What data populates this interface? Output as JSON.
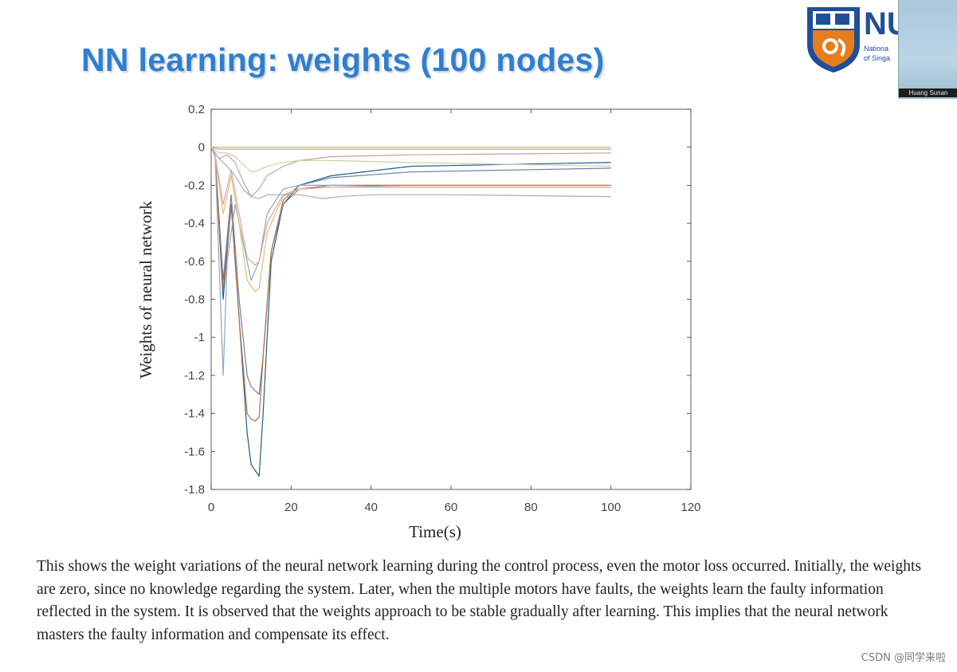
{
  "slide": {
    "title": "NN learning: weights (100 nodes)",
    "caption": "This shows the weight variations of the neural network learning during the control process, even the motor loss occurred. Initially, the weights are zero, since no knowledge regarding the system. Later, when the multiple motors have faults, the weights learn the  faulty information reflected in the system. It  is observed that the weights approach to be stable gradually after  learning. This implies that the neural network masters the faulty information and compensate its effect."
  },
  "logo": {
    "text": "NU",
    "line1": "Nationa",
    "line2": "of Singa",
    "colors": {
      "navy": "#1f4f99",
      "orange": "#e87d1e"
    }
  },
  "webcam": {
    "label": "Huang Sunan"
  },
  "watermark": {
    "text": "CSDN @同学来啦"
  },
  "chart_data": {
    "type": "line",
    "title": "",
    "xlabel": "Time(s)",
    "ylabel": "Weights of neural network",
    "xlim": [
      0,
      120
    ],
    "ylim": [
      -1.8,
      0.2
    ],
    "xticks": [
      "0",
      "20",
      "40",
      "60",
      "80",
      "100",
      "120"
    ],
    "yticks": [
      "0.2",
      "0",
      "-0.2",
      "-0.4",
      "-0.6",
      "-0.8",
      "-1",
      "-1.2",
      "-1.4",
      "-1.6",
      "-1.8"
    ],
    "grid": false,
    "series": [
      {
        "color": "#1f5f8b",
        "x": [
          0,
          1,
          3,
          5,
          7,
          9,
          10,
          11,
          12,
          13,
          15,
          18,
          22,
          30,
          50,
          100
        ],
        "y": [
          0,
          -0.05,
          -0.8,
          -0.3,
          -0.9,
          -1.5,
          -1.67,
          -1.7,
          -1.73,
          -1.4,
          -0.6,
          -0.3,
          -0.2,
          -0.15,
          -0.1,
          -0.08
        ]
      },
      {
        "color": "#6b7fa8",
        "x": [
          0,
          1,
          3,
          5,
          7,
          9,
          10,
          11,
          12,
          13,
          15,
          18,
          22,
          30,
          50,
          100
        ],
        "y": [
          0,
          -0.05,
          -0.7,
          -0.25,
          -0.8,
          -1.2,
          -1.26,
          -1.28,
          -1.3,
          -1.1,
          -0.55,
          -0.28,
          -0.2,
          -0.16,
          -0.13,
          -0.11
        ]
      },
      {
        "color": "#b86f3d",
        "x": [
          0,
          1,
          3,
          5,
          7,
          9,
          10,
          11,
          12,
          13,
          15,
          18,
          22,
          30,
          50,
          100
        ],
        "y": [
          0,
          -0.05,
          -0.75,
          -0.3,
          -0.9,
          -1.4,
          -1.43,
          -1.44,
          -1.42,
          -1.1,
          -0.55,
          -0.3,
          -0.22,
          -0.2,
          -0.2,
          -0.2
        ]
      },
      {
        "color": "#8aa8c8",
        "x": [
          0,
          1,
          3,
          4,
          6,
          8,
          10,
          12,
          14,
          18,
          22,
          30,
          50,
          100
        ],
        "y": [
          0,
          -0.05,
          -1.2,
          -0.6,
          -0.3,
          -0.5,
          -0.7,
          -0.6,
          -0.35,
          -0.22,
          -0.2,
          -0.2,
          -0.21,
          -0.21
        ]
      },
      {
        "color": "#d9c46a",
        "x": [
          0,
          1,
          3,
          5,
          7,
          9,
          11,
          12,
          14,
          18,
          22,
          30,
          50,
          100
        ],
        "y": [
          0,
          -0.05,
          -0.35,
          -0.15,
          -0.4,
          -0.7,
          -0.76,
          -0.74,
          -0.45,
          -0.26,
          -0.22,
          -0.21,
          -0.21,
          -0.21
        ]
      },
      {
        "color": "#e0a0a8",
        "x": [
          0,
          1,
          3,
          5,
          7,
          9,
          11,
          12,
          14,
          18,
          22,
          30,
          50,
          100
        ],
        "y": [
          0,
          -0.04,
          -0.3,
          -0.12,
          -0.35,
          -0.58,
          -0.62,
          -0.6,
          -0.4,
          -0.25,
          -0.22,
          -0.21,
          -0.21,
          -0.21
        ]
      },
      {
        "color": "#c9a0a0",
        "x": [
          0,
          2,
          4,
          6,
          8,
          10,
          12,
          14,
          18,
          22,
          30,
          50,
          100
        ],
        "y": [
          0,
          -0.06,
          -0.04,
          -0.08,
          -0.18,
          -0.26,
          -0.22,
          -0.15,
          -0.1,
          -0.07,
          -0.05,
          -0.04,
          -0.03
        ]
      },
      {
        "color": "#9ab0c0",
        "x": [
          0,
          2,
          4,
          6,
          8,
          10,
          12,
          14,
          18,
          22,
          28,
          32,
          40,
          60,
          100
        ],
        "y": [
          0,
          -0.06,
          -0.1,
          -0.15,
          -0.22,
          -0.26,
          -0.27,
          -0.25,
          -0.25,
          -0.25,
          -0.27,
          -0.26,
          -0.25,
          -0.25,
          -0.26
        ]
      },
      {
        "color": "#cfcfa8",
        "x": [
          0,
          2,
          4,
          6,
          8,
          10,
          12,
          14,
          18,
          22,
          30,
          50,
          100
        ],
        "y": [
          0,
          -0.03,
          -0.03,
          -0.05,
          -0.09,
          -0.13,
          -0.12,
          -0.1,
          -0.08,
          -0.07,
          -0.07,
          -0.08,
          -0.1
        ]
      },
      {
        "color": "#a8b888",
        "x": [
          0,
          2,
          5,
          10,
          20,
          50,
          100
        ],
        "y": [
          0,
          -0.01,
          -0.01,
          -0.01,
          -0.01,
          -0.01,
          -0.01
        ]
      },
      {
        "color": "#c8b070",
        "x": [
          0,
          2,
          5,
          10,
          20,
          50,
          100
        ],
        "y": [
          0,
          0,
          0,
          0,
          0,
          0,
          0
        ]
      }
    ]
  }
}
